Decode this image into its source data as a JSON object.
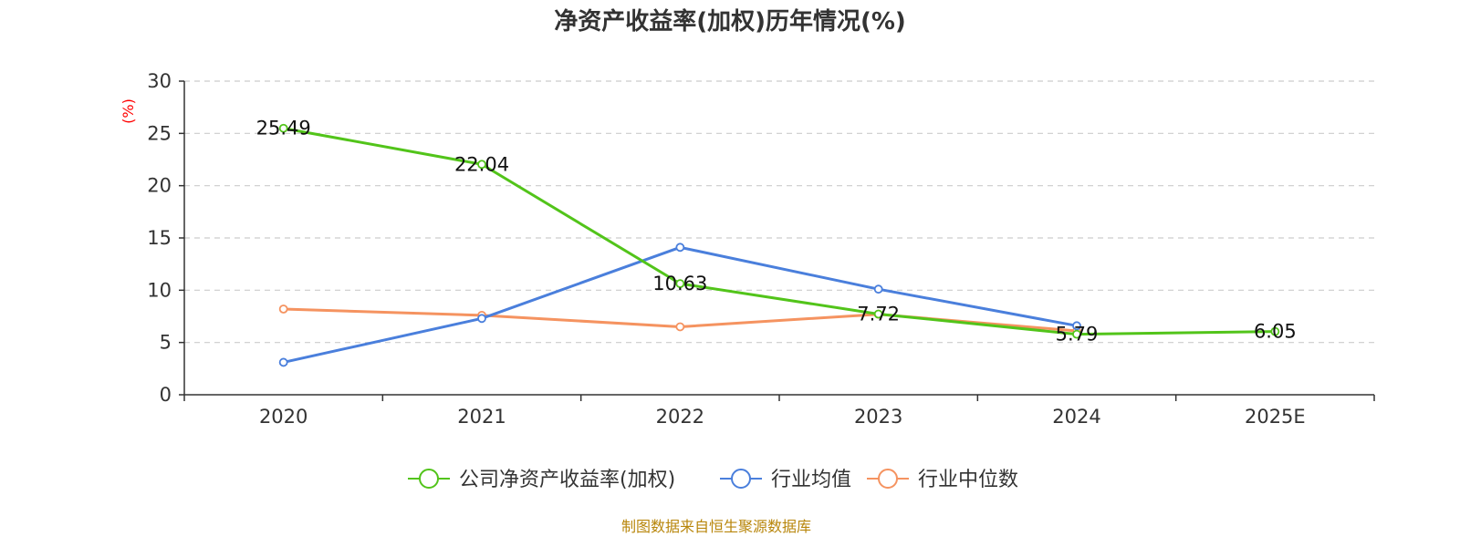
{
  "chart_data": {
    "type": "line",
    "title": "净资产收益率(加权)历年情况(%)",
    "xlabel": "",
    "ylabel": "(%)",
    "ylim": [
      0,
      30
    ],
    "yticks": [
      0,
      5,
      10,
      15,
      20,
      25,
      30
    ],
    "grid": true,
    "legend_position": "bottom",
    "categories": [
      "2020",
      "2021",
      "2022",
      "2023",
      "2024",
      "2025E"
    ],
    "series": [
      {
        "name": "公司净资产收益率(加权)",
        "color": "#52c41a",
        "values": [
          25.49,
          22.04,
          10.63,
          7.72,
          5.79,
          6.05
        ],
        "labels": [
          "25.49",
          "22.04",
          "10.63",
          "7.72",
          "5.79",
          "6.05"
        ]
      },
      {
        "name": "行业均值",
        "color": "#4a7fdc",
        "values": [
          3.1,
          7.3,
          14.1,
          10.1,
          6.6,
          null
        ]
      },
      {
        "name": "行业中位数",
        "color": "#f59360",
        "values": [
          8.2,
          7.6,
          6.5,
          7.7,
          6.1,
          null
        ]
      }
    ],
    "source": "制图数据来自恒生聚源数据库"
  }
}
